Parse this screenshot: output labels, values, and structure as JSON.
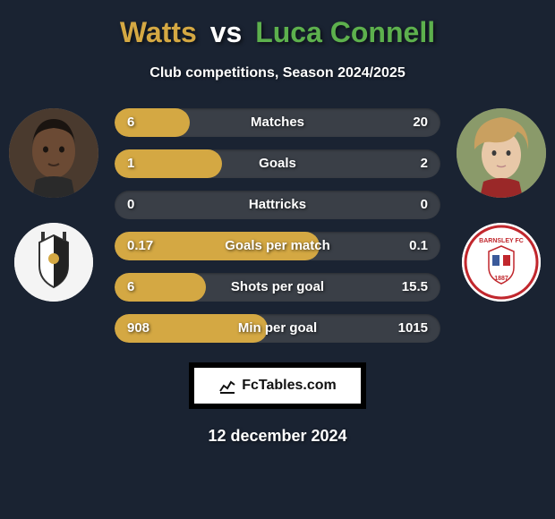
{
  "title": {
    "player1": "Watts",
    "vs": "vs",
    "player2": "Luca Connell",
    "player1_color": "#d4a843",
    "vs_color": "#ffffff",
    "player2_color": "#5db04d",
    "fontsize": 32
  },
  "subtitle": "Club competitions, Season 2024/2025",
  "date": "12 december 2024",
  "brand": "FcTables.com",
  "background_color": "#1a2332",
  "bar_bg_color": "#3a3f47",
  "player1": {
    "name": "Watts",
    "avatar_bg": "#6b5a4a",
    "club_bg": "#f4f4f4",
    "club_accent": "#333333"
  },
  "player2": {
    "name": "Luca Connell",
    "avatar_bg": "#c9a878",
    "club_bg": "#ffffff",
    "club_accent": "#c1272d"
  },
  "stats": [
    {
      "label": "Matches",
      "left_value": "6",
      "right_value": "20",
      "fill_percent": 23,
      "fill_color": "#d4a843"
    },
    {
      "label": "Goals",
      "left_value": "1",
      "right_value": "2",
      "fill_percent": 33,
      "fill_color": "#d4a843"
    },
    {
      "label": "Hattricks",
      "left_value": "0",
      "right_value": "0",
      "fill_percent": 0,
      "fill_color": "#d4a843"
    },
    {
      "label": "Goals per match",
      "left_value": "0.17",
      "right_value": "0.1",
      "fill_percent": 63,
      "fill_color": "#d4a843"
    },
    {
      "label": "Shots per goal",
      "left_value": "6",
      "right_value": "15.5",
      "fill_percent": 28,
      "fill_color": "#d4a843"
    },
    {
      "label": "Min per goal",
      "left_value": "908",
      "right_value": "1015",
      "fill_percent": 47,
      "fill_color": "#d4a843"
    }
  ]
}
